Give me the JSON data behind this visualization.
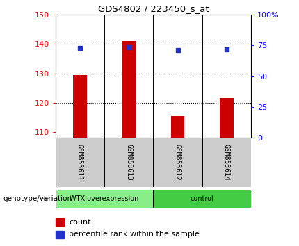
{
  "title": "GDS4802 / 223450_s_at",
  "samples": [
    "GSM853611",
    "GSM853613",
    "GSM853612",
    "GSM853614"
  ],
  "groups": [
    "WTX overexpression",
    "WTX overexpression",
    "control",
    "control"
  ],
  "count_values": [
    129.5,
    141.0,
    115.5,
    121.5
  ],
  "percentile_values": [
    73.0,
    73.5,
    71.5,
    72.0
  ],
  "ylim_left": [
    108,
    150
  ],
  "ylim_right": [
    0,
    100
  ],
  "yticks_left": [
    110,
    120,
    130,
    140,
    150
  ],
  "yticks_right": [
    0,
    25,
    50,
    75,
    100
  ],
  "ytick_labels_right": [
    "0",
    "25",
    "50",
    "75",
    "100%"
  ],
  "bar_color": "#cc0000",
  "dot_color": "#2233cc",
  "bar_bottom": 108,
  "sample_bg_color": "#cccccc",
  "group1_color": "#88ee88",
  "group2_color": "#44cc44",
  "legend_count_label": "count",
  "legend_pct_label": "percentile rank within the sample",
  "genotype_label": "genotype/variation",
  "arrow_color": "#888888"
}
